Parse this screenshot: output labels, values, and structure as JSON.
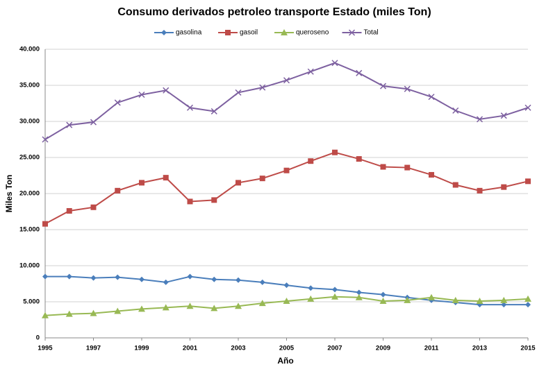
{
  "chart_data": {
    "type": "line",
    "title": "Consumo  derivados petroleo transporte Estado (miles Ton)",
    "xlabel": "Año",
    "ylabel": "Miles Ton",
    "x": [
      1995,
      1996,
      1997,
      1998,
      1999,
      2000,
      2001,
      2002,
      2003,
      2004,
      2005,
      2006,
      2007,
      2008,
      2009,
      2010,
      2011,
      2012,
      2013,
      2014,
      2015
    ],
    "xlim": [
      1995,
      2015
    ],
    "xticks": [
      1995,
      1997,
      1999,
      2001,
      2003,
      2005,
      2007,
      2009,
      2011,
      2013,
      2015
    ],
    "ylim": [
      0,
      40000
    ],
    "yticks": [
      0,
      {
        "value": 5000,
        "label": "5.000"
      },
      {
        "value": 10000,
        "label": "10.000"
      },
      {
        "value": 15000,
        "label": "15.000"
      },
      {
        "value": 20000,
        "label": "20.000"
      },
      {
        "value": 25000,
        "label": "25.000"
      },
      {
        "value": 30000,
        "label": "30.000"
      },
      {
        "value": 35000,
        "label": "35.000"
      },
      {
        "value": 40000,
        "label": "40.000"
      }
    ],
    "grid": true,
    "legend": "top",
    "series": [
      {
        "name": "gasolina",
        "color": "#4a7ebb",
        "marker": "diamond",
        "values": [
          8500,
          8500,
          8300,
          8400,
          8100,
          7700,
          8500,
          8100,
          8000,
          7700,
          7300,
          6900,
          6700,
          6300,
          6000,
          5600,
          5200,
          4900,
          4600,
          4600,
          4600
        ]
      },
      {
        "name": "gasoil",
        "color": "#be4b48",
        "marker": "square",
        "values": [
          15800,
          17600,
          18100,
          20400,
          21500,
          22200,
          18900,
          19100,
          21500,
          22100,
          23200,
          24500,
          25700,
          24800,
          23700,
          23600,
          22600,
          21200,
          20400,
          20900,
          21700
        ]
      },
      {
        "name": "queroseno",
        "color": "#98b954",
        "marker": "triangle",
        "values": [
          3100,
          3300,
          3400,
          3700,
          4000,
          4200,
          4400,
          4100,
          4400,
          4800,
          5100,
          5400,
          5700,
          5600,
          5100,
          5200,
          5600,
          5200,
          5100,
          5200,
          5400
        ]
      },
      {
        "name": "Total",
        "color": "#7d60a0",
        "marker": "x",
        "values": [
          27500,
          29500,
          29900,
          32600,
          33700,
          34300,
          31900,
          31400,
          34000,
          34700,
          35700,
          36900,
          38100,
          36700,
          34900,
          34500,
          33400,
          31500,
          30300,
          30800,
          31900
        ]
      }
    ]
  }
}
